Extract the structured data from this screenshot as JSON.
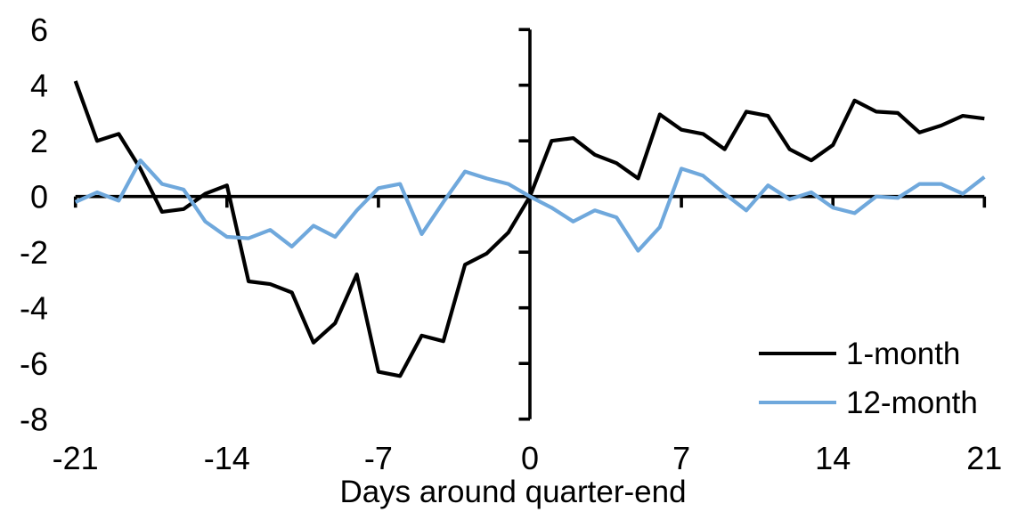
{
  "chart_data": {
    "type": "line",
    "xlabel": "Days around quarter-end",
    "ylabel": "",
    "title": "",
    "xlim": [
      -21,
      21
    ],
    "ylim": [
      -8,
      6
    ],
    "xticks": [
      -21,
      -14,
      -7,
      0,
      7,
      14,
      21
    ],
    "yticks": [
      6,
      4,
      2,
      0,
      -2,
      -4,
      -6,
      -8
    ],
    "grid": false,
    "legend_position": "inside-bottom-right",
    "axis_color": "#000000",
    "background_color": "#ffffff",
    "x": [
      -21,
      -20,
      -19,
      -18,
      -17,
      -16,
      -15,
      -14,
      -13,
      -12,
      -11,
      -10,
      -9,
      -8,
      -7,
      -6,
      -5,
      -4,
      -3,
      -2,
      -1,
      0,
      1,
      2,
      3,
      4,
      5,
      6,
      7,
      8,
      9,
      10,
      11,
      12,
      13,
      14,
      15,
      16,
      17,
      18,
      19,
      20,
      21
    ],
    "series": [
      {
        "name": "1-month",
        "color": "#000000",
        "values": [
          4.15,
          2.0,
          2.25,
          1.0,
          -0.55,
          -0.45,
          0.1,
          0.4,
          -3.05,
          -3.15,
          -3.45,
          -5.25,
          -4.55,
          -2.8,
          -6.3,
          -6.45,
          -5.0,
          -5.2,
          -2.45,
          -2.05,
          -1.3,
          0,
          2.0,
          2.1,
          1.5,
          1.2,
          0.65,
          2.95,
          2.4,
          2.25,
          1.7,
          3.05,
          2.9,
          1.7,
          1.3,
          1.85,
          3.45,
          3.05,
          3.0,
          2.3,
          2.55,
          2.9,
          2.8
        ]
      },
      {
        "name": "12-month",
        "color": "#6FA8DC",
        "values": [
          -0.2,
          0.15,
          -0.15,
          1.3,
          0.45,
          0.25,
          -0.9,
          -1.45,
          -1.5,
          -1.2,
          -1.8,
          -1.05,
          -1.45,
          -0.5,
          0.3,
          0.45,
          -1.35,
          -0.2,
          0.9,
          0.65,
          0.45,
          0,
          -0.4,
          -0.9,
          -0.5,
          -0.75,
          -1.95,
          -1.1,
          1.0,
          0.75,
          0.1,
          -0.5,
          0.4,
          -0.1,
          0.15,
          -0.4,
          -0.6,
          0.0,
          -0.05,
          0.45,
          0.45,
          0.1,
          0.7
        ]
      }
    ]
  }
}
